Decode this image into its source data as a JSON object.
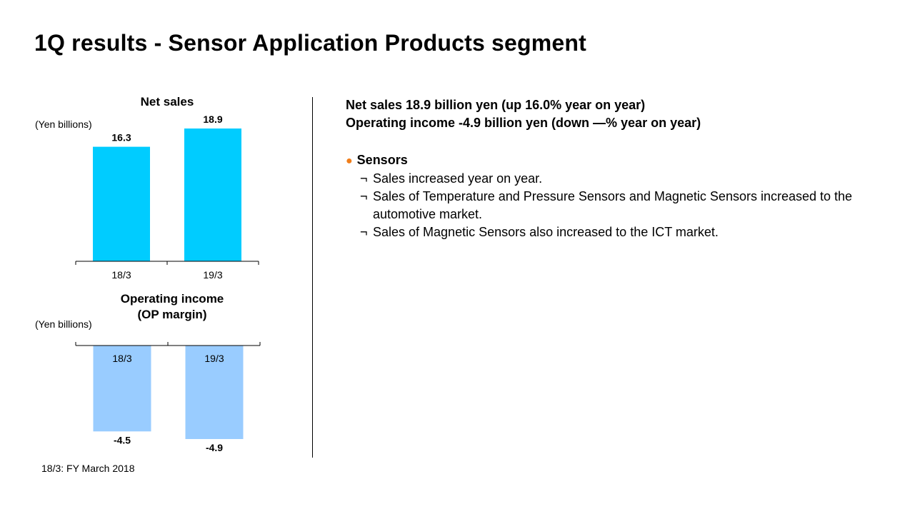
{
  "title": "1Q results - Sensor Application Products segment",
  "colors": {
    "net_sales_bar": "#00ccff",
    "op_income_bar": "#99ccff",
    "bullet": "#f07e1b"
  },
  "chart_data": [
    {
      "type": "bar",
      "title": "Net sales",
      "unit": "(Yen billions)",
      "categories": [
        "18/3",
        "19/3"
      ],
      "values": [
        16.3,
        18.9
      ],
      "value_labels": [
        "16.3",
        "18.9"
      ],
      "ylim": [
        0,
        18.9
      ]
    },
    {
      "type": "bar",
      "title": "Operating income (OP margin)",
      "title_lines": [
        "Operating income",
        "(OP margin)"
      ],
      "unit": "(Yen billions)",
      "categories": [
        "18/3",
        "19/3"
      ],
      "values": [
        -4.5,
        -4.9
      ],
      "value_labels": [
        "-4.5",
        "-4.9"
      ],
      "ylim": [
        -4.9,
        0
      ]
    }
  ],
  "footnote": "18/3: FY March 2018",
  "summary": {
    "line1": "Net sales 18.9 billion yen (up 16.0% year on year)",
    "line2": "Operating income -4.9 billion yen (down —% year on year)"
  },
  "sensors": {
    "bullet_icon": "●",
    "heading": "Sensors",
    "mark": "¬",
    "items": [
      "Sales increased year on year.",
      "Sales of Temperature and Pressure Sensors and Magnetic Sensors increased to the automotive market.",
      "Sales of Magnetic Sensors also increased to the ICT market."
    ]
  }
}
